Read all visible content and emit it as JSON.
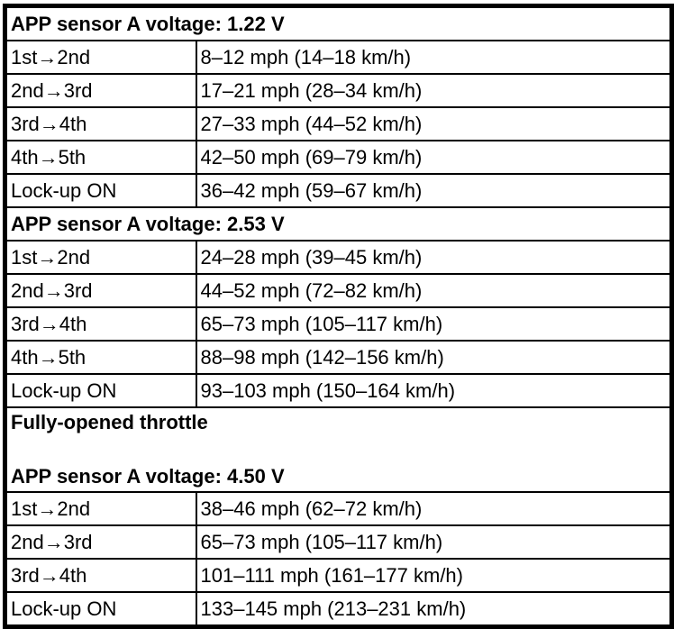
{
  "page": {
    "background": "#ffffff",
    "border_color": "#000000",
    "text_color": "#000000"
  },
  "table": {
    "sections": [
      {
        "header": "APP sensor A voltage: 1.22 V",
        "rows": [
          {
            "label": "1st→2nd",
            "value": "8–12 mph (14–18 km/h)"
          },
          {
            "label": "2nd→3rd",
            "value": "17–21 mph (28–34 km/h)"
          },
          {
            "label": "3rd→4th",
            "value": "27–33 mph (44–52 km/h)"
          },
          {
            "label": "4th→5th",
            "value": "42–50 mph (69–79 km/h)"
          },
          {
            "label": "Lock-up ON",
            "value": "36–42 mph (59–67 km/h)"
          }
        ]
      },
      {
        "header": "APP sensor A voltage: 2.53 V",
        "rows": [
          {
            "label": "1st→2nd",
            "value": "24–28 mph (39–45 km/h)"
          },
          {
            "label": "2nd→3rd",
            "value": "44–52 mph (72–82 km/h)"
          },
          {
            "label": "3rd→4th",
            "value": "65–73 mph (105–117 km/h)"
          },
          {
            "label": "4th→5th",
            "value": "88–98 mph (142–156 km/h)"
          },
          {
            "label": "Lock-up ON",
            "value": "93–103 mph (150–164 km/h)"
          }
        ]
      },
      {
        "header_line1": "Fully-opened throttle",
        "header_line2": "APP sensor A voltage: 4.50 V",
        "rows": [
          {
            "label": "1st→2nd",
            "value": "38–46 mph (62–72 km/h)"
          },
          {
            "label": "2nd→3rd",
            "value": "65–73 mph (105–117 km/h)"
          },
          {
            "label": "3rd→4th",
            "value": "101–111 mph (161–177 km/h)"
          },
          {
            "label": "Lock-up ON",
            "value": "133–145 mph (213–231 km/h)"
          }
        ]
      }
    ]
  }
}
